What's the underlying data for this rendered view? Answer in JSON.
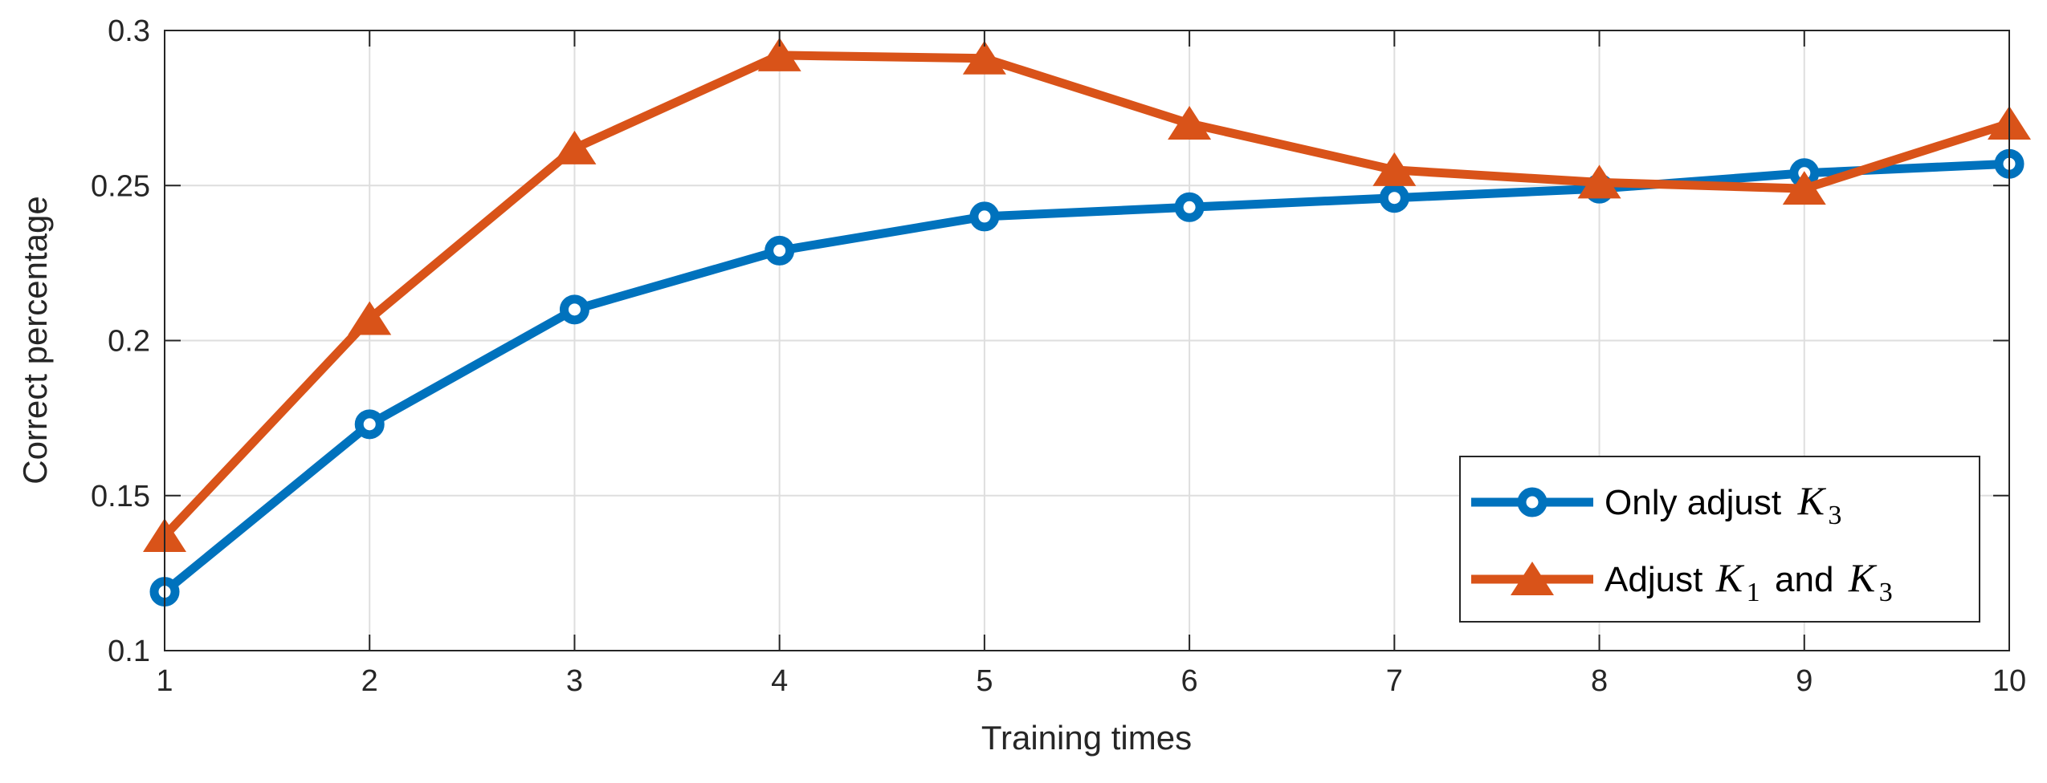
{
  "chart_data": {
    "type": "line",
    "title": "",
    "xlabel": "Training times",
    "ylabel": "Correct percentage",
    "x": [
      1,
      2,
      3,
      4,
      5,
      6,
      7,
      8,
      9,
      10
    ],
    "xlim": [
      1,
      10
    ],
    "ylim": [
      0.1,
      0.3
    ],
    "xticks": [
      "1",
      "2",
      "3",
      "4",
      "5",
      "6",
      "7",
      "8",
      "9",
      "10"
    ],
    "yticks": [
      "0.1",
      "0.15",
      "0.2",
      "0.25",
      "0.3"
    ],
    "ytick_values": [
      0.1,
      0.15,
      0.2,
      0.25,
      0.3
    ],
    "grid": true,
    "legend_position": "bottom-right",
    "series": [
      {
        "legend_text": "Only adjust",
        "legend_math": "K",
        "legend_math_sub": "3",
        "color": "#0072BD",
        "marker": "circle",
        "values": [
          0.119,
          0.173,
          0.21,
          0.229,
          0.24,
          0.243,
          0.246,
          0.249,
          0.254,
          0.257
        ]
      },
      {
        "legend_text": "Adjust",
        "legend_math": "K",
        "legend_math_sub": "1",
        "legend_text2": "and",
        "legend_math2": "K",
        "legend_math2_sub": "3",
        "color": "#D95319",
        "marker": "triangle",
        "values": [
          0.137,
          0.207,
          0.262,
          0.292,
          0.291,
          0.27,
          0.255,
          0.251,
          0.249,
          0.27
        ]
      }
    ]
  }
}
